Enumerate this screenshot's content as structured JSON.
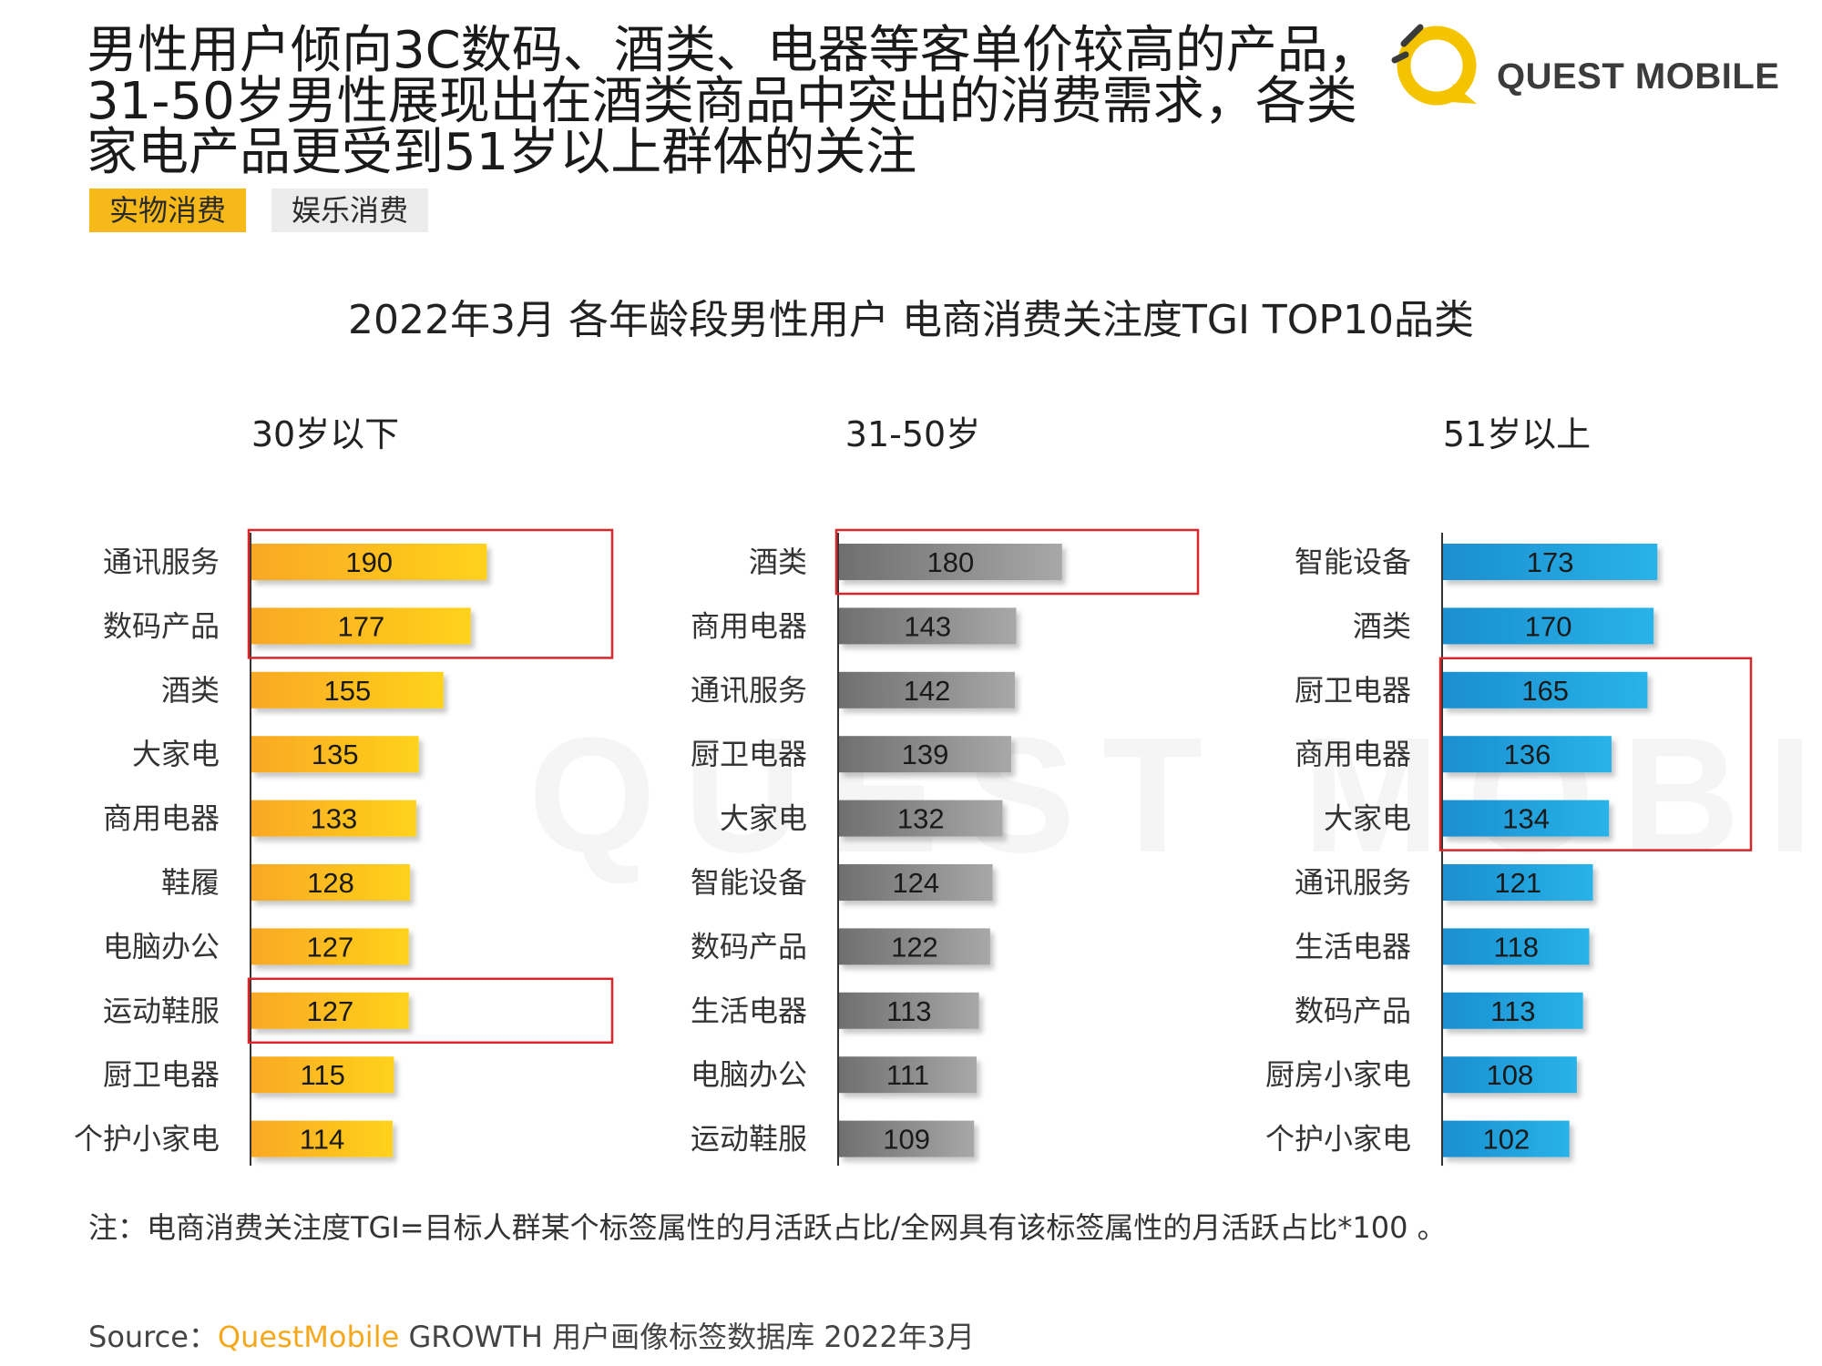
{
  "headline": "男性用户倾向3C数码、酒类、电器等客单价较高的产品，31-50岁男性展现出在酒类商品中突出的消费需求，各类家电产品更受到51岁以上群体的关注",
  "logo": {
    "text": "QUEST MOBILE",
    "mark_color": "#f5c400"
  },
  "watermark": "QUEST MOBILE",
  "tabs": [
    {
      "label": "实物消费",
      "active": true
    },
    {
      "label": "娱乐消费",
      "active": false
    }
  ],
  "chart_title": "2022年3月 各年龄段男性用户 电商消费关注度TGI TOP10品类",
  "chart_data": [
    {
      "type": "bar",
      "orientation": "horizontal",
      "title": "30岁以下",
      "color": "#fbbf1c",
      "categories": [
        "通讯服务",
        "数码产品",
        "酒类",
        "大家电",
        "商用电器",
        "鞋履",
        "电脑办公",
        "运动鞋服",
        "厨卫电器",
        "个护小家电"
      ],
      "values": [
        190,
        177,
        155,
        135,
        133,
        128,
        127,
        127,
        115,
        114
      ],
      "highlight_groups": [
        [
          0,
          1
        ],
        [
          7
        ]
      ]
    },
    {
      "type": "bar",
      "orientation": "horizontal",
      "title": "31-50岁",
      "color": "#8a8a8a",
      "categories": [
        "酒类",
        "商用电器",
        "通讯服务",
        "厨卫电器",
        "大家电",
        "智能设备",
        "数码产品",
        "生活电器",
        "电脑办公",
        "运动鞋服"
      ],
      "values": [
        180,
        143,
        142,
        139,
        132,
        124,
        122,
        113,
        111,
        109
      ],
      "highlight_groups": [
        [
          0
        ]
      ]
    },
    {
      "type": "bar",
      "orientation": "horizontal",
      "title": "51岁以上",
      "color": "#1f9fd8",
      "categories": [
        "智能设备",
        "酒类",
        "厨卫电器",
        "商用电器",
        "大家电",
        "通讯服务",
        "生活电器",
        "数码产品",
        "厨房小家电",
        "个护小家电"
      ],
      "values": [
        173,
        170,
        165,
        136,
        134,
        121,
        118,
        113,
        108,
        102
      ],
      "highlight_groups": [
        [
          2,
          3,
          4
        ]
      ]
    }
  ],
  "note": "注：电商消费关注度TGI=目标人群某个标签属性的月活跃占比/全网具有该标签属性的月活跃占比*100 。",
  "source": {
    "prefix": "Source：",
    "brand": "QuestMobile",
    "rest": " GROWTH 用户画像标签数据库 2022年3月"
  },
  "colors": {
    "highlight_box": "#d9262b",
    "axis": "#333333",
    "brand_yellow": "#f5a81c"
  }
}
